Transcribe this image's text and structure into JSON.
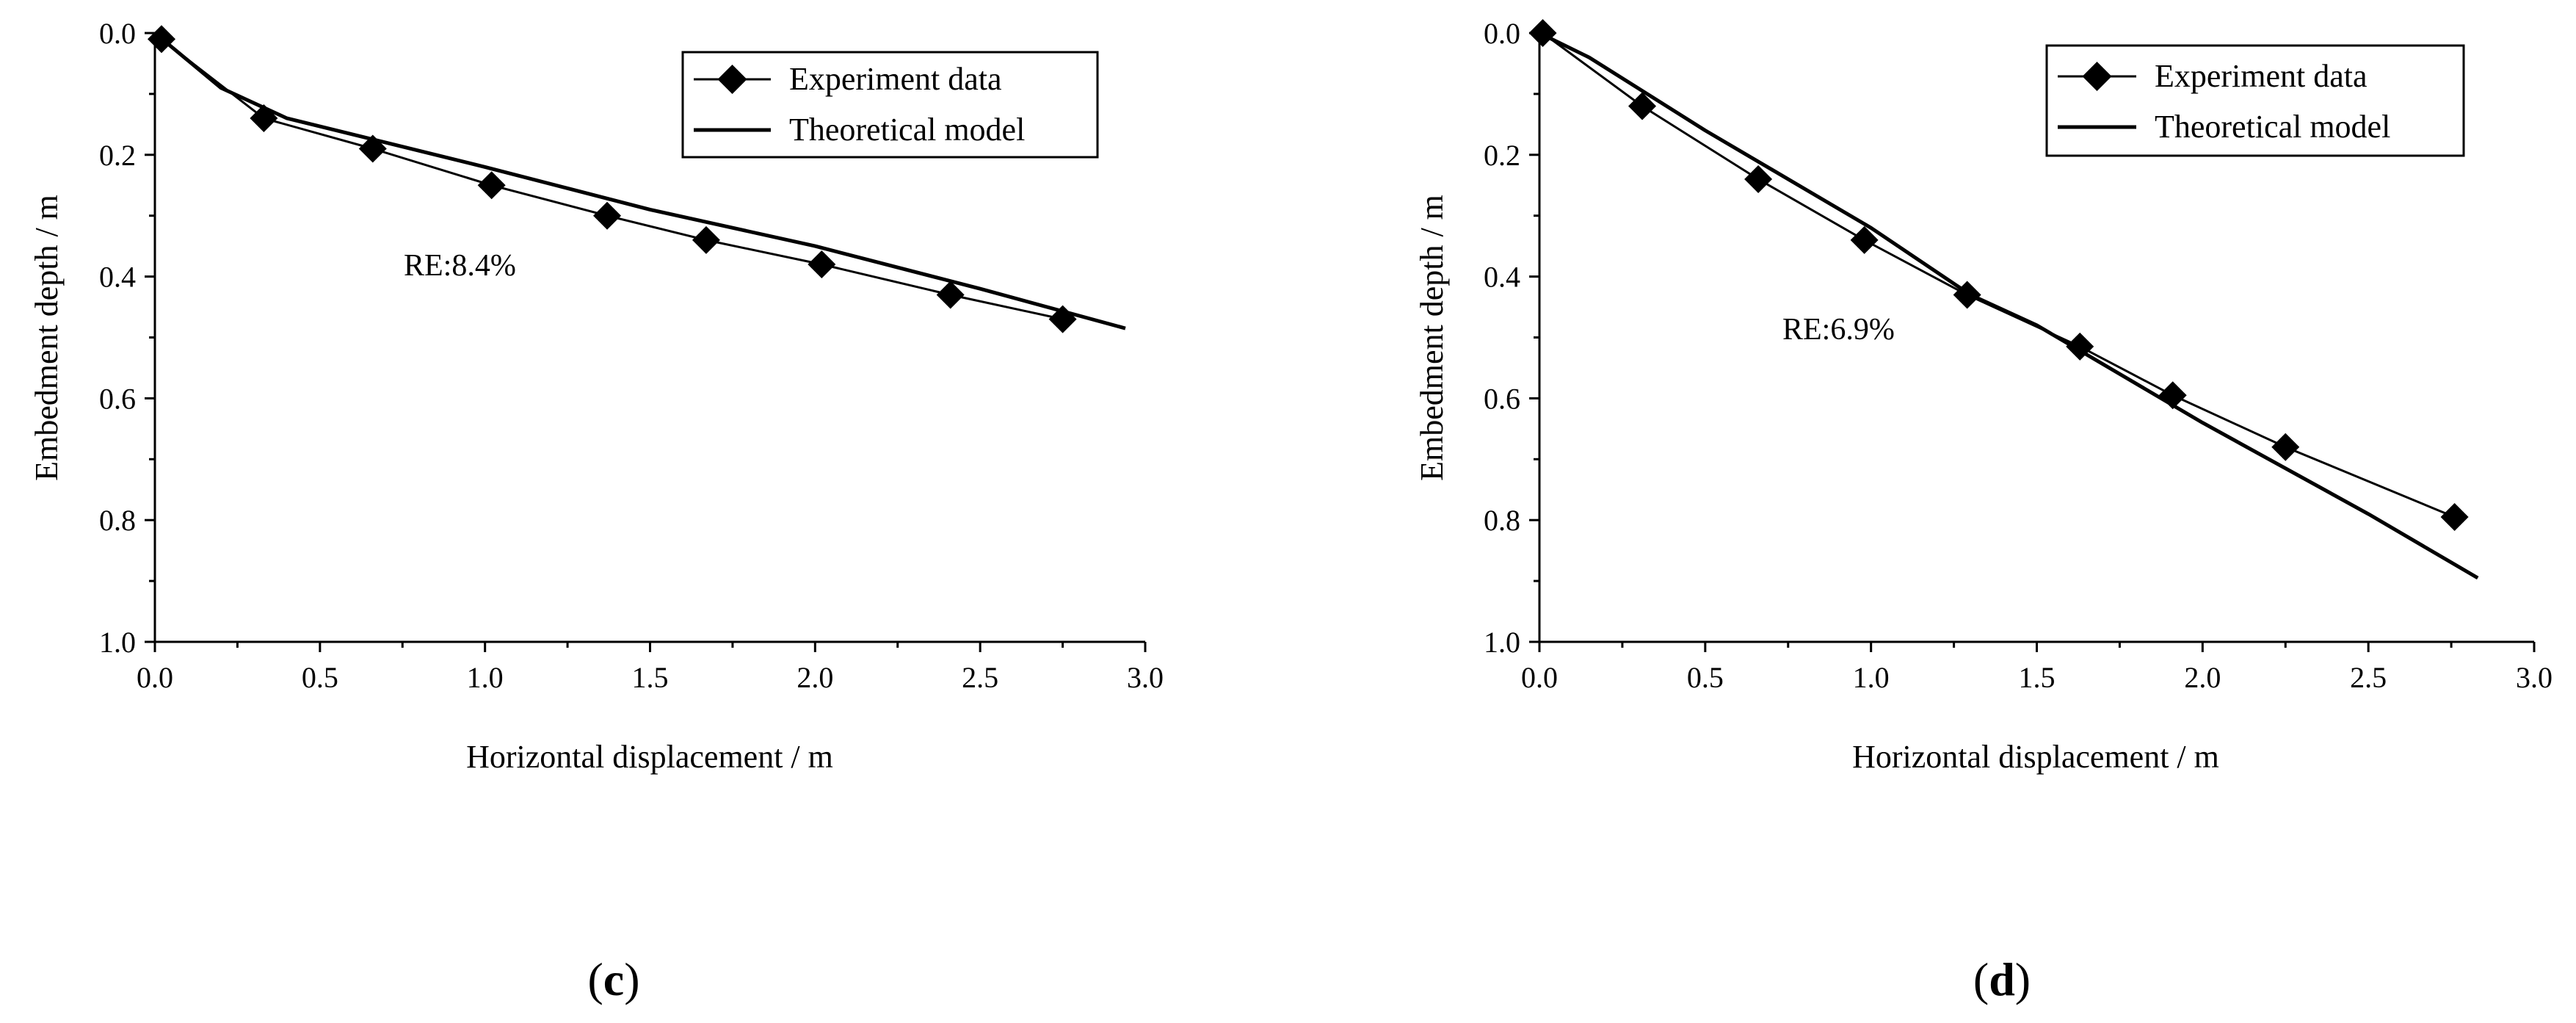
{
  "chart_data": [
    {
      "type": "line",
      "panel_label_open": "(",
      "panel_label_letter": "c",
      "panel_label_close": ")",
      "xlabel": "Horizontal displacement / m",
      "ylabel": "Embedment depth / m",
      "xlim": [
        0,
        3.0
      ],
      "ylim": [
        0,
        1.0
      ],
      "y_inverted": true,
      "xticks": [
        "0.0",
        "0.5",
        "1.0",
        "1.5",
        "2.0",
        "2.5",
        "3.0"
      ],
      "yticks": [
        "0.0",
        "0.2",
        "0.4",
        "0.6",
        "0.8",
        "1.0"
      ],
      "legend_position": "top-right",
      "annotation": "RE:8.4%",
      "series": [
        {
          "name": "Experiment data",
          "marker": "diamond",
          "x": [
            0.02,
            0.33,
            0.66,
            1.02,
            1.37,
            1.67,
            2.02,
            2.41,
            2.75
          ],
          "y": [
            0.01,
            0.14,
            0.19,
            0.25,
            0.3,
            0.34,
            0.38,
            0.43,
            0.47
          ]
        },
        {
          "name": "Theoretical model",
          "marker": "none",
          "x": [
            0.0,
            0.2,
            0.4,
            0.7,
            1.0,
            1.5,
            2.0,
            2.5,
            2.94
          ],
          "y": [
            0.0,
            0.09,
            0.14,
            0.18,
            0.22,
            0.29,
            0.35,
            0.42,
            0.485
          ]
        }
      ]
    },
    {
      "type": "line",
      "panel_label_open": "(",
      "panel_label_letter": "d",
      "panel_label_close": ")",
      "xlabel": "Horizontal displacement / m",
      "ylabel": "Embedment depth / m",
      "xlim": [
        0,
        3.0
      ],
      "ylim": [
        0,
        1.0
      ],
      "y_inverted": true,
      "xticks": [
        "0.0",
        "0.5",
        "1.0",
        "1.5",
        "2.0",
        "2.5",
        "3.0"
      ],
      "yticks": [
        "0.0",
        "0.2",
        "0.4",
        "0.6",
        "0.8",
        "1.0"
      ],
      "legend_position": "top-right",
      "annotation": "RE:6.9%",
      "series": [
        {
          "name": "Experiment data",
          "marker": "diamond",
          "x": [
            0.01,
            0.31,
            0.66,
            0.98,
            1.29,
            1.63,
            1.91,
            2.25,
            2.76
          ],
          "y": [
            0.0,
            0.12,
            0.24,
            0.34,
            0.43,
            0.515,
            0.595,
            0.68,
            0.795
          ]
        },
        {
          "name": "Theoretical model",
          "marker": "none",
          "x": [
            0.0,
            0.15,
            0.5,
            1.0,
            1.3,
            1.5,
            2.0,
            2.5,
            2.83
          ],
          "y": [
            0.0,
            0.04,
            0.16,
            0.32,
            0.43,
            0.48,
            0.64,
            0.79,
            0.895
          ]
        }
      ]
    }
  ]
}
